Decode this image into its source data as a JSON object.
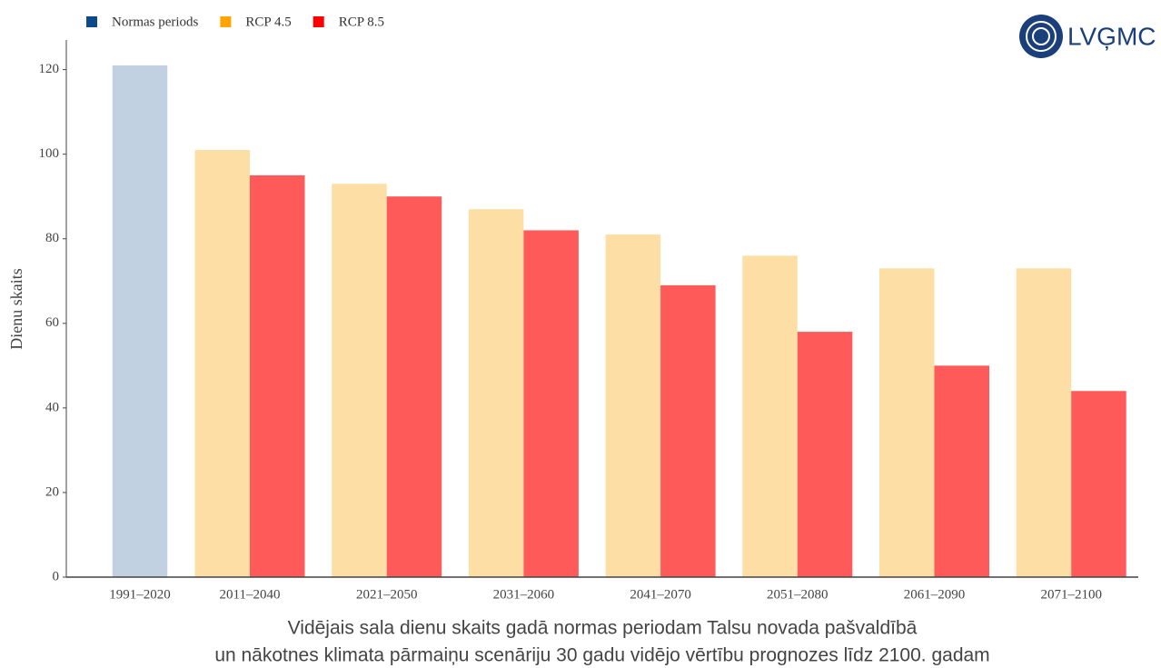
{
  "chart_data": {
    "type": "bar",
    "title": [
      "Vidējais sala dienu skaits gadā normas periodam Talsu novada pašvaldībā",
      "un nākotnes klimata pārmaiņu scenāriju 30 gadu vidējo vērtību prognozes līdz 2100. gadam"
    ],
    "y_label": "Dienu skaits",
    "logo": "LVĢMC",
    "categories": [
      "1991–2020",
      "2011–2040",
      "2021–2050",
      "2031–2060",
      "2041–2070",
      "2051–2080",
      "2061–2090",
      "2071–2100"
    ],
    "series": [
      {
        "name": "Normas periods",
        "color": "#c2d1e2",
        "legend_color": "#0b4a8b",
        "values": [
          121,
          null,
          null,
          null,
          null,
          null,
          null,
          null
        ]
      },
      {
        "name": "RCP 4.5",
        "color": "#fddfa6",
        "legend_color": "#ffa500",
        "values": [
          null,
          101,
          93,
          87,
          81,
          76,
          73,
          73
        ]
      },
      {
        "name": "RCP 8.5",
        "color": "#ff5a5a",
        "legend_color": "#ff0000",
        "values": [
          null,
          95,
          90,
          82,
          69,
          58,
          50,
          44
        ]
      }
    ],
    "ylim": [
      0,
      127
    ],
    "yticks": [
      0,
      20,
      40,
      60,
      80,
      100,
      120
    ],
    "grid": false,
    "legend": "top-left"
  }
}
